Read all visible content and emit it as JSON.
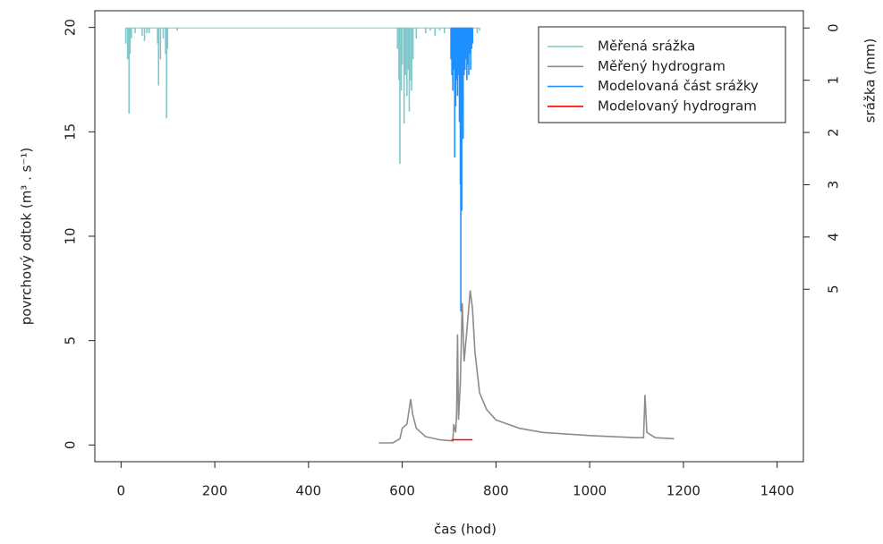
{
  "chart_data": {
    "type": "line",
    "xlabel": "čas (hod)",
    "ylabel": "povrchový odtok (m³ . s⁻¹)",
    "y2label": "srážka (mm)",
    "xlim": [
      -56,
      1456
    ],
    "xticks": [
      0,
      200,
      400,
      600,
      800,
      1000,
      1200,
      1400
    ],
    "ylim": [
      -0.8,
      20.8
    ],
    "yticks": [
      0,
      5,
      10,
      15,
      20
    ],
    "y2lim": [
      8.3,
      -0.33
    ],
    "y2ticks": [
      0,
      1,
      2,
      3,
      4,
      5
    ],
    "legend": "topright",
    "series": [
      {
        "name": "Měřená srážka",
        "color": "#7ec8cc",
        "type": "bar",
        "axis": "y2",
        "x": [
          10,
          14,
          17,
          19,
          22,
          30,
          45,
          50,
          55,
          60,
          78,
          80,
          84,
          90,
          95,
          97,
          99,
          120,
          590,
          593,
          595,
          598,
          600,
          604,
          607,
          610,
          613,
          615,
          618,
          620,
          623,
          630,
          650,
          660,
          670,
          680,
          690,
          760,
          765
        ],
        "values": [
          0.3,
          0.6,
          1.64,
          0.5,
          0.2,
          0.1,
          0.15,
          0.25,
          0.1,
          0.1,
          0.3,
          1.1,
          0.6,
          0.2,
          0.5,
          1.73,
          0.4,
          0.05,
          0.4,
          1.0,
          2.6,
          1.2,
          0.7,
          1.83,
          0.9,
          1.3,
          0.8,
          1.6,
          1.0,
          1.2,
          0.6,
          0.2,
          0.1,
          0.05,
          0.15,
          0.05,
          0.1,
          0.1,
          0.05
        ]
      },
      {
        "name": "Měřený hydrogram",
        "color": "#8c8c8c",
        "type": "line",
        "x": [
          550,
          580,
          595,
          600,
          610,
          618,
          622,
          630,
          650,
          680,
          705,
          708,
          710,
          714,
          716,
          718,
          720,
          724,
          728,
          732,
          738,
          745,
          750,
          755,
          765,
          780,
          800,
          850,
          900,
          1000,
          1100,
          1115,
          1118,
          1122,
          1140,
          1180
        ],
        "values": [
          0.1,
          0.1,
          0.3,
          0.8,
          1.0,
          2.2,
          1.5,
          0.8,
          0.4,
          0.25,
          0.2,
          0.2,
          1.0,
          0.6,
          1.5,
          5.3,
          1.2,
          3.0,
          6.8,
          4.0,
          5.5,
          7.4,
          6.5,
          4.5,
          2.5,
          1.7,
          1.2,
          0.8,
          0.6,
          0.45,
          0.35,
          0.35,
          2.4,
          0.6,
          0.35,
          0.3
        ]
      },
      {
        "name": "Modelovaná část srážky",
        "color": "#1e90ff",
        "type": "bar",
        "axis": "y2",
        "x": [
          704,
          706,
          708,
          710,
          712,
          714,
          716,
          718,
          720,
          722,
          724,
          725,
          727,
          729,
          730,
          732,
          734,
          736,
          738,
          740,
          742,
          744,
          746,
          748,
          750
        ],
        "values": [
          0.6,
          0.9,
          1.2,
          0.8,
          2.48,
          1.5,
          1.0,
          1.3,
          0.9,
          1.8,
          3.0,
          5.43,
          3.5,
          1.6,
          2.12,
          0.9,
          0.8,
          0.6,
          1.0,
          0.7,
          0.9,
          0.5,
          0.8,
          0.4,
          0.3
        ]
      },
      {
        "name": "Modelovaný hydrogram",
        "color": "#ff0000",
        "type": "line",
        "x": [
          705,
          750
        ],
        "values": [
          0.25,
          0.25
        ]
      }
    ]
  }
}
